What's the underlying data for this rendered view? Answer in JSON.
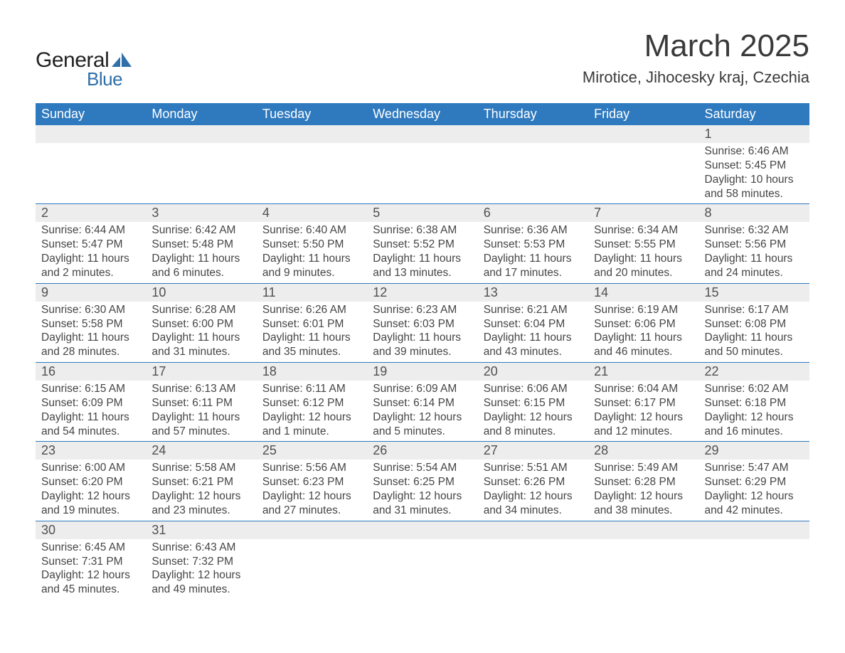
{
  "brand": {
    "word1": "General",
    "word2": "Blue"
  },
  "title": "March 2025",
  "location": "Mirotice, Jihocesky kraj, Czechia",
  "colors": {
    "header_bg": "#2f7abf",
    "header_text": "#ffffff",
    "daynum_bg": "#ededed",
    "row_divider": "#2f7abf",
    "body_text": "#454545",
    "title_text": "#3a3a3a",
    "logo_blue": "#2f6faa",
    "background": "#ffffff"
  },
  "typography": {
    "title_fontsize": 44,
    "location_fontsize": 22,
    "dayheader_fontsize": 18,
    "daynum_fontsize": 18,
    "body_fontsize": 15.5,
    "font_family": "Arial"
  },
  "day_headers": [
    "Sunday",
    "Monday",
    "Tuesday",
    "Wednesday",
    "Thursday",
    "Friday",
    "Saturday"
  ],
  "weeks": [
    [
      null,
      null,
      null,
      null,
      null,
      null,
      {
        "n": "1",
        "sr": "Sunrise: 6:46 AM",
        "ss": "Sunset: 5:45 PM",
        "d1": "Daylight: 10 hours",
        "d2": "and 58 minutes."
      }
    ],
    [
      {
        "n": "2",
        "sr": "Sunrise: 6:44 AM",
        "ss": "Sunset: 5:47 PM",
        "d1": "Daylight: 11 hours",
        "d2": "and 2 minutes."
      },
      {
        "n": "3",
        "sr": "Sunrise: 6:42 AM",
        "ss": "Sunset: 5:48 PM",
        "d1": "Daylight: 11 hours",
        "d2": "and 6 minutes."
      },
      {
        "n": "4",
        "sr": "Sunrise: 6:40 AM",
        "ss": "Sunset: 5:50 PM",
        "d1": "Daylight: 11 hours",
        "d2": "and 9 minutes."
      },
      {
        "n": "5",
        "sr": "Sunrise: 6:38 AM",
        "ss": "Sunset: 5:52 PM",
        "d1": "Daylight: 11 hours",
        "d2": "and 13 minutes."
      },
      {
        "n": "6",
        "sr": "Sunrise: 6:36 AM",
        "ss": "Sunset: 5:53 PM",
        "d1": "Daylight: 11 hours",
        "d2": "and 17 minutes."
      },
      {
        "n": "7",
        "sr": "Sunrise: 6:34 AM",
        "ss": "Sunset: 5:55 PM",
        "d1": "Daylight: 11 hours",
        "d2": "and 20 minutes."
      },
      {
        "n": "8",
        "sr": "Sunrise: 6:32 AM",
        "ss": "Sunset: 5:56 PM",
        "d1": "Daylight: 11 hours",
        "d2": "and 24 minutes."
      }
    ],
    [
      {
        "n": "9",
        "sr": "Sunrise: 6:30 AM",
        "ss": "Sunset: 5:58 PM",
        "d1": "Daylight: 11 hours",
        "d2": "and 28 minutes."
      },
      {
        "n": "10",
        "sr": "Sunrise: 6:28 AM",
        "ss": "Sunset: 6:00 PM",
        "d1": "Daylight: 11 hours",
        "d2": "and 31 minutes."
      },
      {
        "n": "11",
        "sr": "Sunrise: 6:26 AM",
        "ss": "Sunset: 6:01 PM",
        "d1": "Daylight: 11 hours",
        "d2": "and 35 minutes."
      },
      {
        "n": "12",
        "sr": "Sunrise: 6:23 AM",
        "ss": "Sunset: 6:03 PM",
        "d1": "Daylight: 11 hours",
        "d2": "and 39 minutes."
      },
      {
        "n": "13",
        "sr": "Sunrise: 6:21 AM",
        "ss": "Sunset: 6:04 PM",
        "d1": "Daylight: 11 hours",
        "d2": "and 43 minutes."
      },
      {
        "n": "14",
        "sr": "Sunrise: 6:19 AM",
        "ss": "Sunset: 6:06 PM",
        "d1": "Daylight: 11 hours",
        "d2": "and 46 minutes."
      },
      {
        "n": "15",
        "sr": "Sunrise: 6:17 AM",
        "ss": "Sunset: 6:08 PM",
        "d1": "Daylight: 11 hours",
        "d2": "and 50 minutes."
      }
    ],
    [
      {
        "n": "16",
        "sr": "Sunrise: 6:15 AM",
        "ss": "Sunset: 6:09 PM",
        "d1": "Daylight: 11 hours",
        "d2": "and 54 minutes."
      },
      {
        "n": "17",
        "sr": "Sunrise: 6:13 AM",
        "ss": "Sunset: 6:11 PM",
        "d1": "Daylight: 11 hours",
        "d2": "and 57 minutes."
      },
      {
        "n": "18",
        "sr": "Sunrise: 6:11 AM",
        "ss": "Sunset: 6:12 PM",
        "d1": "Daylight: 12 hours",
        "d2": "and 1 minute."
      },
      {
        "n": "19",
        "sr": "Sunrise: 6:09 AM",
        "ss": "Sunset: 6:14 PM",
        "d1": "Daylight: 12 hours",
        "d2": "and 5 minutes."
      },
      {
        "n": "20",
        "sr": "Sunrise: 6:06 AM",
        "ss": "Sunset: 6:15 PM",
        "d1": "Daylight: 12 hours",
        "d2": "and 8 minutes."
      },
      {
        "n": "21",
        "sr": "Sunrise: 6:04 AM",
        "ss": "Sunset: 6:17 PM",
        "d1": "Daylight: 12 hours",
        "d2": "and 12 minutes."
      },
      {
        "n": "22",
        "sr": "Sunrise: 6:02 AM",
        "ss": "Sunset: 6:18 PM",
        "d1": "Daylight: 12 hours",
        "d2": "and 16 minutes."
      }
    ],
    [
      {
        "n": "23",
        "sr": "Sunrise: 6:00 AM",
        "ss": "Sunset: 6:20 PM",
        "d1": "Daylight: 12 hours",
        "d2": "and 19 minutes."
      },
      {
        "n": "24",
        "sr": "Sunrise: 5:58 AM",
        "ss": "Sunset: 6:21 PM",
        "d1": "Daylight: 12 hours",
        "d2": "and 23 minutes."
      },
      {
        "n": "25",
        "sr": "Sunrise: 5:56 AM",
        "ss": "Sunset: 6:23 PM",
        "d1": "Daylight: 12 hours",
        "d2": "and 27 minutes."
      },
      {
        "n": "26",
        "sr": "Sunrise: 5:54 AM",
        "ss": "Sunset: 6:25 PM",
        "d1": "Daylight: 12 hours",
        "d2": "and 31 minutes."
      },
      {
        "n": "27",
        "sr": "Sunrise: 5:51 AM",
        "ss": "Sunset: 6:26 PM",
        "d1": "Daylight: 12 hours",
        "d2": "and 34 minutes."
      },
      {
        "n": "28",
        "sr": "Sunrise: 5:49 AM",
        "ss": "Sunset: 6:28 PM",
        "d1": "Daylight: 12 hours",
        "d2": "and 38 minutes."
      },
      {
        "n": "29",
        "sr": "Sunrise: 5:47 AM",
        "ss": "Sunset: 6:29 PM",
        "d1": "Daylight: 12 hours",
        "d2": "and 42 minutes."
      }
    ],
    [
      {
        "n": "30",
        "sr": "Sunrise: 6:45 AM",
        "ss": "Sunset: 7:31 PM",
        "d1": "Daylight: 12 hours",
        "d2": "and 45 minutes."
      },
      {
        "n": "31",
        "sr": "Sunrise: 6:43 AM",
        "ss": "Sunset: 7:32 PM",
        "d1": "Daylight: 12 hours",
        "d2": "and 49 minutes."
      },
      null,
      null,
      null,
      null,
      null
    ]
  ]
}
